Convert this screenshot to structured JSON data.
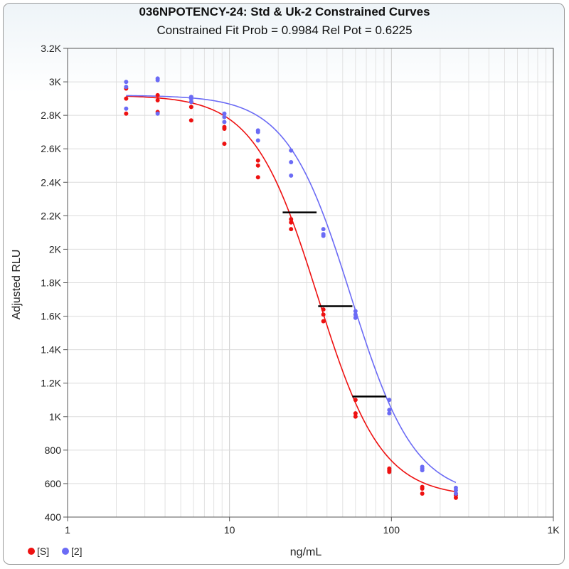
{
  "chart_data": {
    "type": "scatter",
    "title": "036NPOTENCY-24: Std & Uk-2 Constrained Curves",
    "subtitle": "Constrained Fit Prob = 0.9984  Rel Pot = 0.6225",
    "xlabel": "ng/mL",
    "ylabel": "Adjusted RLU",
    "x_scale": "log",
    "xlim": [
      1,
      1000
    ],
    "ylim": [
      400,
      3200
    ],
    "x_ticks": [
      {
        "value": 1,
        "label": "1"
      },
      {
        "value": 10,
        "label": "10"
      },
      {
        "value": 100,
        "label": "100"
      },
      {
        "value": 1000,
        "label": "1K"
      }
    ],
    "y_ticks": [
      {
        "value": 400,
        "label": "400"
      },
      {
        "value": 600,
        "label": "600"
      },
      {
        "value": 800,
        "label": "800"
      },
      {
        "value": 1000,
        "label": "1K"
      },
      {
        "value": 1200,
        "label": "1.2K"
      },
      {
        "value": 1400,
        "label": "1.4K"
      },
      {
        "value": 1600,
        "label": "1.6K"
      },
      {
        "value": 1800,
        "label": "1.8K"
      },
      {
        "value": 2000,
        "label": "2K"
      },
      {
        "value": 2200,
        "label": "2.2K"
      },
      {
        "value": 2400,
        "label": "2.4K"
      },
      {
        "value": 2600,
        "label": "2.6K"
      },
      {
        "value": 2800,
        "label": "2.8K"
      },
      {
        "value": 3000,
        "label": "3K"
      },
      {
        "value": 3200,
        "label": "3.2K"
      }
    ],
    "grid": true,
    "legend_position": "bottom-left",
    "series": [
      {
        "name": "[S]",
        "color": "#ee1111",
        "curve": {
          "top": 2920,
          "bottom": 520,
          "ec50": 35,
          "slope": 2.2
        },
        "points": [
          [
            2.3,
            2960
          ],
          [
            2.3,
            2900
          ],
          [
            2.3,
            2810
          ],
          [
            3.6,
            2920
          ],
          [
            3.6,
            2890
          ],
          [
            3.6,
            2820
          ],
          [
            5.8,
            2880
          ],
          [
            5.8,
            2850
          ],
          [
            5.8,
            2770
          ],
          [
            9.3,
            2730
          ],
          [
            9.3,
            2720
          ],
          [
            9.3,
            2630
          ],
          [
            15,
            2530
          ],
          [
            15,
            2500
          ],
          [
            15,
            2430
          ],
          [
            24,
            2180
          ],
          [
            24,
            2160
          ],
          [
            24,
            2120
          ],
          [
            38,
            1640
          ],
          [
            38,
            1610
          ],
          [
            38,
            1570
          ],
          [
            60,
            1100
          ],
          [
            60,
            1020
          ],
          [
            60,
            1000
          ],
          [
            97,
            690
          ],
          [
            97,
            680
          ],
          [
            97,
            670
          ],
          [
            155,
            580
          ],
          [
            155,
            570
          ],
          [
            155,
            540
          ],
          [
            250,
            540
          ],
          [
            250,
            530
          ],
          [
            250,
            515
          ]
        ]
      },
      {
        "name": "[2]",
        "color": "#6b6bf5",
        "curve": {
          "top": 2920,
          "bottom": 520,
          "ec50": 56.2,
          "slope": 2.2
        },
        "points": [
          [
            2.3,
            3000
          ],
          [
            2.3,
            2970
          ],
          [
            2.3,
            2840
          ],
          [
            3.6,
            3020
          ],
          [
            3.6,
            3010
          ],
          [
            3.6,
            2810
          ],
          [
            5.8,
            2910
          ],
          [
            5.8,
            2900
          ],
          [
            5.8,
            2880
          ],
          [
            9.3,
            2810
          ],
          [
            9.3,
            2790
          ],
          [
            9.3,
            2760
          ],
          [
            15,
            2710
          ],
          [
            15,
            2700
          ],
          [
            15,
            2650
          ],
          [
            24,
            2590
          ],
          [
            24,
            2520
          ],
          [
            24,
            2440
          ],
          [
            38,
            2120
          ],
          [
            38,
            2090
          ],
          [
            38,
            2080
          ],
          [
            60,
            1630
          ],
          [
            60,
            1610
          ],
          [
            60,
            1590
          ],
          [
            97,
            1100
          ],
          [
            97,
            1040
          ],
          [
            97,
            1020
          ],
          [
            155,
            700
          ],
          [
            155,
            690
          ],
          [
            155,
            680
          ],
          [
            250,
            575
          ],
          [
            250,
            560
          ],
          [
            250,
            540
          ]
        ]
      }
    ],
    "hline_segments": [
      {
        "y": 2220,
        "x1": 21.3,
        "x2": 34.5
      },
      {
        "y": 1660,
        "x1": 35.3,
        "x2": 57.4
      },
      {
        "y": 1120,
        "x1": 57.4,
        "x2": 92.5
      }
    ]
  }
}
